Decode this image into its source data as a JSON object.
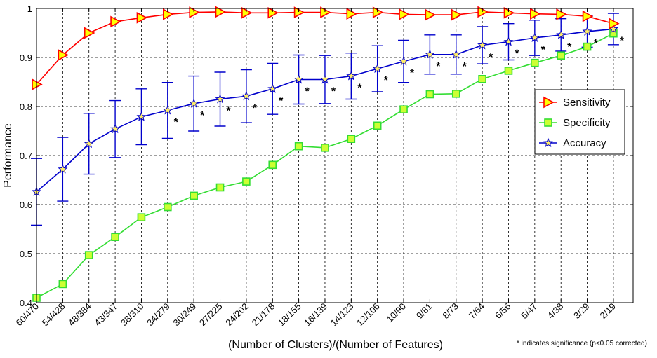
{
  "chart_data": {
    "type": "line",
    "xlabel": "(Number of Clusters)/(Number of Features)",
    "ylabel": "Performance",
    "ylim": [
      0.4,
      1.0
    ],
    "yticks": [
      0.4,
      0.5,
      0.6,
      0.7,
      0.8,
      0.9,
      1
    ],
    "ytick_labels": [
      "0.4",
      "0.5",
      "0.6",
      "0.7",
      "0.8",
      "0.9",
      "1"
    ],
    "grid": true,
    "legend_position": "right",
    "footnote": "* indicates significance (p<0.05 corrected)",
    "significance_marker": "*",
    "categories": [
      "60/470",
      "54/428",
      "48/384",
      "43/347",
      "38/310",
      "34/279",
      "30/249",
      "27/225",
      "24/202",
      "21/178",
      "18/155",
      "16/139",
      "14/123",
      "12/106",
      "10/90",
      "9/81",
      "8/73",
      "7/64",
      "6/56",
      "5/47",
      "4/38",
      "3/29",
      "2/19"
    ],
    "significant": [
      false,
      false,
      false,
      false,
      false,
      true,
      true,
      true,
      true,
      true,
      true,
      true,
      true,
      true,
      true,
      true,
      true,
      true,
      true,
      true,
      true,
      true,
      true
    ],
    "series": [
      {
        "name": "Sensitivity",
        "color": "#ff0000",
        "marker_fill": "#ffff00",
        "marker": "triangle-right",
        "values": [
          0.845,
          0.905,
          0.95,
          0.973,
          0.981,
          0.988,
          0.992,
          0.993,
          0.991,
          0.991,
          0.992,
          0.992,
          0.989,
          0.992,
          0.988,
          0.987,
          0.987,
          0.993,
          0.991,
          0.989,
          0.988,
          0.984,
          0.969
        ]
      },
      {
        "name": "Specificity",
        "color": "#33dd33",
        "marker_fill": "#ccff33",
        "marker": "square",
        "values": [
          0.41,
          0.438,
          0.497,
          0.534,
          0.574,
          0.595,
          0.618,
          0.635,
          0.647,
          0.681,
          0.719,
          0.716,
          0.734,
          0.761,
          0.794,
          0.825,
          0.826,
          0.856,
          0.873,
          0.889,
          0.904,
          0.922,
          0.949
        ]
      },
      {
        "name": "Accuracy",
        "color": "#0000cc",
        "marker_fill": "#ffee66",
        "marker": "star",
        "values": [
          0.626,
          0.672,
          0.724,
          0.754,
          0.779,
          0.792,
          0.806,
          0.815,
          0.821,
          0.836,
          0.855,
          0.855,
          0.862,
          0.877,
          0.892,
          0.906,
          0.906,
          0.925,
          0.932,
          0.94,
          0.946,
          0.953,
          0.958
        ],
        "error": [
          0.068,
          0.065,
          0.062,
          0.058,
          0.057,
          0.057,
          0.056,
          0.055,
          0.054,
          0.052,
          0.05,
          0.049,
          0.047,
          0.047,
          0.043,
          0.04,
          0.04,
          0.038,
          0.037,
          0.036,
          0.033,
          0.032,
          0.032
        ]
      }
    ]
  }
}
